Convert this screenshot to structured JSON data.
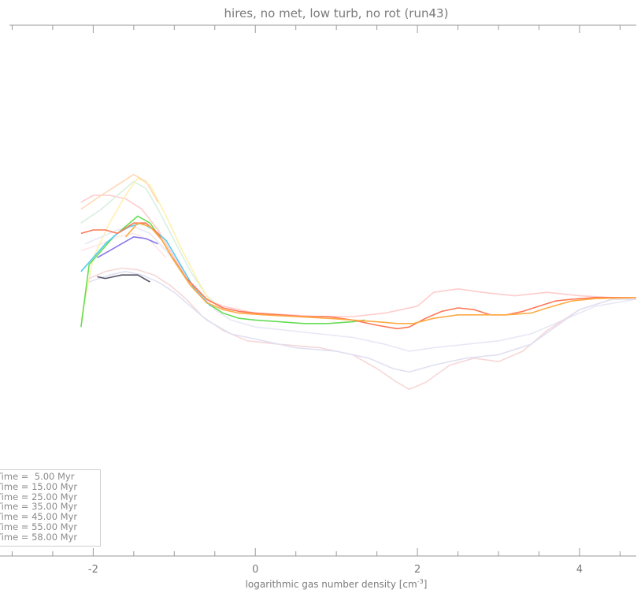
{
  "chart_data": {
    "type": "line",
    "title": "hires, no met, low turb, no rot (run43)",
    "xlabel": "logarithmic gas number density [cm",
    "xlabel_sup": "-3",
    "xlabel_end": "]",
    "xlim": [
      -3.15,
      4.7
    ],
    "ylim": [
      0,
      1
    ],
    "x_ticks": [
      -2,
      0,
      2,
      4
    ],
    "x_tick_labels": [
      "-2",
      "0",
      "2",
      "4"
    ],
    "grid": false,
    "legend_position": "bottom-left",
    "legend": [
      "Time =  5.00 Myr",
      "Time = 15.00 Myr",
      "Time = 25.00 Myr",
      "Time = 35.00 Myr",
      "Time = 45.00 Myr",
      "Time = 55.00 Myr",
      "Time = 58.00 Myr"
    ],
    "series": [
      {
        "color": "#ffcccc",
        "points": [
          [
            -2.15,
            0.78
          ],
          [
            -2.0,
            0.8
          ],
          [
            -1.8,
            0.8
          ],
          [
            -1.6,
            0.79
          ],
          [
            -1.4,
            0.76
          ],
          [
            -1.2,
            0.7
          ],
          [
            -1.0,
            0.62
          ],
          [
            -0.8,
            0.55
          ],
          [
            -0.6,
            0.5
          ],
          [
            -0.4,
            0.48
          ],
          [
            -0.2,
            0.47
          ],
          [
            0.0,
            0.46
          ],
          [
            0.4,
            0.455
          ],
          [
            0.8,
            0.45
          ],
          [
            1.2,
            0.45
          ],
          [
            1.6,
            0.46
          ],
          [
            2.0,
            0.48
          ],
          [
            2.2,
            0.52
          ],
          [
            2.5,
            0.53
          ],
          [
            2.8,
            0.52
          ],
          [
            3.2,
            0.51
          ],
          [
            3.6,
            0.52
          ],
          [
            4.0,
            0.51
          ],
          [
            4.4,
            0.505
          ],
          [
            4.7,
            0.5
          ]
        ]
      },
      {
        "color": "#d8f0e0",
        "points": [
          [
            -2.15,
            0.72
          ],
          [
            -1.9,
            0.76
          ],
          [
            -1.7,
            0.8
          ],
          [
            -1.5,
            0.84
          ],
          [
            -1.35,
            0.82
          ],
          [
            -1.2,
            0.76
          ],
          [
            -1.0,
            0.67
          ],
          [
            -0.8,
            0.58
          ],
          [
            -0.6,
            0.51
          ],
          [
            -0.4,
            0.47
          ]
        ]
      },
      {
        "color": "#fff0b0",
        "points": [
          [
            -2.15,
            0.44
          ],
          [
            -2.0,
            0.62
          ],
          [
            -1.8,
            0.72
          ],
          [
            -1.6,
            0.8
          ],
          [
            -1.45,
            0.85
          ],
          [
            -1.3,
            0.83
          ],
          [
            -1.1,
            0.74
          ],
          [
            -0.9,
            0.64
          ],
          [
            -0.7,
            0.55
          ],
          [
            -0.55,
            0.49
          ]
        ]
      },
      {
        "color": "#e8e8f6",
        "points": [
          [
            -2.1,
            0.66
          ],
          [
            -1.9,
            0.68
          ],
          [
            -1.7,
            0.7
          ],
          [
            -1.5,
            0.71
          ],
          [
            -1.3,
            0.69
          ],
          [
            -1.1,
            0.64
          ],
          [
            -0.9,
            0.58
          ],
          [
            -0.7,
            0.52
          ],
          [
            -0.5,
            0.47
          ],
          [
            -0.3,
            0.44
          ],
          [
            0.0,
            0.42
          ],
          [
            0.4,
            0.41
          ],
          [
            0.8,
            0.4
          ],
          [
            1.2,
            0.39
          ],
          [
            1.6,
            0.37
          ],
          [
            1.9,
            0.35
          ],
          [
            2.2,
            0.36
          ],
          [
            2.6,
            0.37
          ],
          [
            3.0,
            0.38
          ],
          [
            3.4,
            0.4
          ],
          [
            3.8,
            0.44
          ],
          [
            4.2,
            0.48
          ],
          [
            4.7,
            0.5
          ]
        ]
      },
      {
        "color": "#f6d8d8",
        "points": [
          [
            -2.05,
            0.56
          ],
          [
            -1.85,
            0.58
          ],
          [
            -1.65,
            0.59
          ],
          [
            -1.45,
            0.585
          ],
          [
            -1.25,
            0.57
          ],
          [
            -1.05,
            0.54
          ],
          [
            -0.85,
            0.5
          ],
          [
            -0.65,
            0.45
          ],
          [
            -0.4,
            0.41
          ],
          [
            -0.1,
            0.38
          ],
          [
            0.3,
            0.37
          ],
          [
            0.8,
            0.36
          ],
          [
            1.2,
            0.34
          ],
          [
            1.5,
            0.3
          ],
          [
            1.75,
            0.26
          ],
          [
            1.9,
            0.24
          ],
          [
            2.1,
            0.26
          ],
          [
            2.4,
            0.31
          ],
          [
            2.7,
            0.33
          ],
          [
            3.0,
            0.32
          ],
          [
            3.3,
            0.35
          ],
          [
            3.6,
            0.41
          ],
          [
            4.0,
            0.47
          ],
          [
            4.4,
            0.5
          ],
          [
            4.7,
            0.5
          ]
        ]
      },
      {
        "color": "#e0e0f2",
        "points": [
          [
            -2.05,
            0.55
          ],
          [
            -1.8,
            0.57
          ],
          [
            -1.6,
            0.58
          ],
          [
            -1.4,
            0.57
          ],
          [
            -1.2,
            0.55
          ],
          [
            -1.0,
            0.52
          ],
          [
            -0.8,
            0.48
          ],
          [
            -0.6,
            0.44
          ],
          [
            -0.3,
            0.4
          ],
          [
            0.1,
            0.38
          ],
          [
            0.5,
            0.36
          ],
          [
            1.0,
            0.35
          ],
          [
            1.4,
            0.33
          ],
          [
            1.7,
            0.3
          ],
          [
            1.9,
            0.29
          ],
          [
            2.2,
            0.31
          ],
          [
            2.6,
            0.33
          ],
          [
            3.0,
            0.34
          ],
          [
            3.4,
            0.37
          ],
          [
            3.7,
            0.42
          ],
          [
            4.0,
            0.47
          ],
          [
            4.4,
            0.5
          ],
          [
            4.7,
            0.5
          ]
        ]
      },
      {
        "color": "#ffe6e6",
        "points": [
          [
            -2.15,
            0.64
          ],
          [
            -1.9,
            0.66
          ],
          [
            -1.7,
            0.68
          ],
          [
            -1.5,
            0.69
          ],
          [
            -1.3,
            0.67
          ],
          [
            -1.1,
            0.62
          ]
        ]
      },
      {
        "color": "#ffd8b8",
        "points": [
          [
            -2.15,
            0.76
          ],
          [
            -1.9,
            0.8
          ],
          [
            -1.7,
            0.83
          ],
          [
            -1.5,
            0.86
          ],
          [
            -1.35,
            0.84
          ],
          [
            -1.2,
            0.78
          ]
        ]
      },
      {
        "color": "#66dd55",
        "points": [
          [
            -2.15,
            0.42
          ],
          [
            -2.05,
            0.6
          ],
          [
            -1.9,
            0.64
          ],
          [
            -1.75,
            0.68
          ],
          [
            -1.6,
            0.71
          ],
          [
            -1.45,
            0.74
          ],
          [
            -1.3,
            0.72
          ],
          [
            -1.15,
            0.67
          ],
          [
            -1.0,
            0.61
          ],
          [
            -0.8,
            0.54
          ],
          [
            -0.6,
            0.49
          ],
          [
            -0.4,
            0.46
          ],
          [
            -0.2,
            0.445
          ],
          [
            0.0,
            0.44
          ],
          [
            0.3,
            0.435
          ],
          [
            0.6,
            0.43
          ],
          [
            0.9,
            0.43
          ],
          [
            1.2,
            0.435
          ],
          [
            1.35,
            0.44
          ]
        ]
      },
      {
        "color": "#55ccee",
        "points": [
          [
            -2.15,
            0.58
          ],
          [
            -2.0,
            0.62
          ],
          [
            -1.85,
            0.66
          ],
          [
            -1.7,
            0.69
          ],
          [
            -1.55,
            0.71
          ],
          [
            -1.4,
            0.72
          ],
          [
            -1.25,
            0.7
          ],
          [
            -1.1,
            0.67
          ],
          [
            -0.9,
            0.59
          ],
          [
            -0.75,
            0.53
          ],
          [
            -0.55,
            0.48
          ]
        ]
      },
      {
        "color": "#ff7755",
        "points": [
          [
            -2.15,
            0.69
          ],
          [
            -2.0,
            0.7
          ],
          [
            -1.85,
            0.7
          ],
          [
            -1.7,
            0.69
          ],
          [
            -1.5,
            0.72
          ],
          [
            -1.35,
            0.72
          ],
          [
            -1.2,
            0.69
          ],
          [
            -1.05,
            0.63
          ],
          [
            -0.85,
            0.56
          ],
          [
            -0.6,
            0.5
          ],
          [
            -0.4,
            0.475
          ],
          [
            -0.2,
            0.465
          ],
          [
            0.0,
            0.46
          ],
          [
            0.3,
            0.455
          ],
          [
            0.6,
            0.45
          ],
          [
            0.9,
            0.45
          ],
          [
            1.2,
            0.44
          ],
          [
            1.5,
            0.425
          ],
          [
            1.75,
            0.415
          ],
          [
            1.9,
            0.42
          ],
          [
            2.1,
            0.445
          ],
          [
            2.3,
            0.465
          ],
          [
            2.5,
            0.475
          ],
          [
            2.7,
            0.47
          ],
          [
            2.9,
            0.455
          ],
          [
            3.1,
            0.455
          ],
          [
            3.3,
            0.465
          ],
          [
            3.5,
            0.48
          ],
          [
            3.7,
            0.495
          ],
          [
            3.9,
            0.5
          ],
          [
            4.2,
            0.505
          ],
          [
            4.7,
            0.505
          ]
        ]
      },
      {
        "color": "#ffaa44",
        "points": [
          [
            -1.6,
            0.68
          ],
          [
            -1.45,
            0.72
          ],
          [
            -1.3,
            0.71
          ],
          [
            -1.15,
            0.67
          ],
          [
            -1.0,
            0.61
          ],
          [
            -0.8,
            0.54
          ],
          [
            -0.6,
            0.49
          ],
          [
            -0.4,
            0.47
          ],
          [
            -0.2,
            0.46
          ],
          [
            0.1,
            0.455
          ],
          [
            0.5,
            0.45
          ],
          [
            0.9,
            0.445
          ],
          [
            1.2,
            0.44
          ],
          [
            1.5,
            0.435
          ],
          [
            1.75,
            0.43
          ],
          [
            1.95,
            0.43
          ],
          [
            2.2,
            0.445
          ],
          [
            2.5,
            0.455
          ],
          [
            2.8,
            0.455
          ],
          [
            3.1,
            0.455
          ],
          [
            3.4,
            0.46
          ],
          [
            3.6,
            0.475
          ],
          [
            3.9,
            0.495
          ],
          [
            4.2,
            0.502
          ],
          [
            4.7,
            0.505
          ]
        ]
      },
      {
        "color": "#8877ee",
        "points": [
          [
            -1.95,
            0.62
          ],
          [
            -1.8,
            0.64
          ],
          [
            -1.65,
            0.66
          ],
          [
            -1.5,
            0.68
          ],
          [
            -1.35,
            0.675
          ],
          [
            -1.2,
            0.66
          ]
        ]
      },
      {
        "color": "#555566",
        "points": [
          [
            -1.95,
            0.565
          ],
          [
            -1.85,
            0.56
          ],
          [
            -1.65,
            0.57
          ],
          [
            -1.45,
            0.57
          ],
          [
            -1.3,
            0.55
          ]
        ]
      }
    ]
  }
}
